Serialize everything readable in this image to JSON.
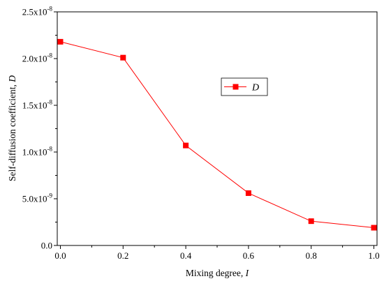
{
  "chart_data": {
    "type": "line",
    "x": [
      0.0,
      0.2,
      0.4,
      0.6,
      0.8,
      1.0
    ],
    "series": [
      {
        "name": "D",
        "values": [
          2.18e-08,
          2.01e-08,
          1.07e-08,
          5.6e-09,
          2.6e-09,
          1.9e-09
        ],
        "color": "#ff0000",
        "marker": "square"
      }
    ],
    "xlabel_text": "Mixing degree, ",
    "xlabel_var": "I",
    "ylabel_text": "Self-diffusion coefficient,  ",
    "ylabel_var": "D",
    "xlim": [
      -0.01,
      1.01
    ],
    "ylim": [
      0,
      2.5e-08
    ],
    "xticks": [
      0.0,
      0.2,
      0.4,
      0.6,
      0.8,
      1.0
    ],
    "xtick_labels": [
      "0.0",
      "0.2",
      "0.4",
      "0.6",
      "0.8",
      "1.0"
    ],
    "yticks": [
      0,
      5e-09,
      1e-08,
      1.5e-08,
      2e-08,
      2.5e-08
    ],
    "ytick_labels": [
      {
        "mantissa": "0.0",
        "exp": ""
      },
      {
        "mantissa": "5.0x10",
        "exp": "-9"
      },
      {
        "mantissa": "1.0x10",
        "exp": "-8"
      },
      {
        "mantissa": "1.5x10",
        "exp": "-8"
      },
      {
        "mantissa": "2.0x10",
        "exp": "-8"
      },
      {
        "mantissa": "2.5x10",
        "exp": "-8"
      }
    ],
    "grid": false,
    "legend_position": "center-right"
  }
}
